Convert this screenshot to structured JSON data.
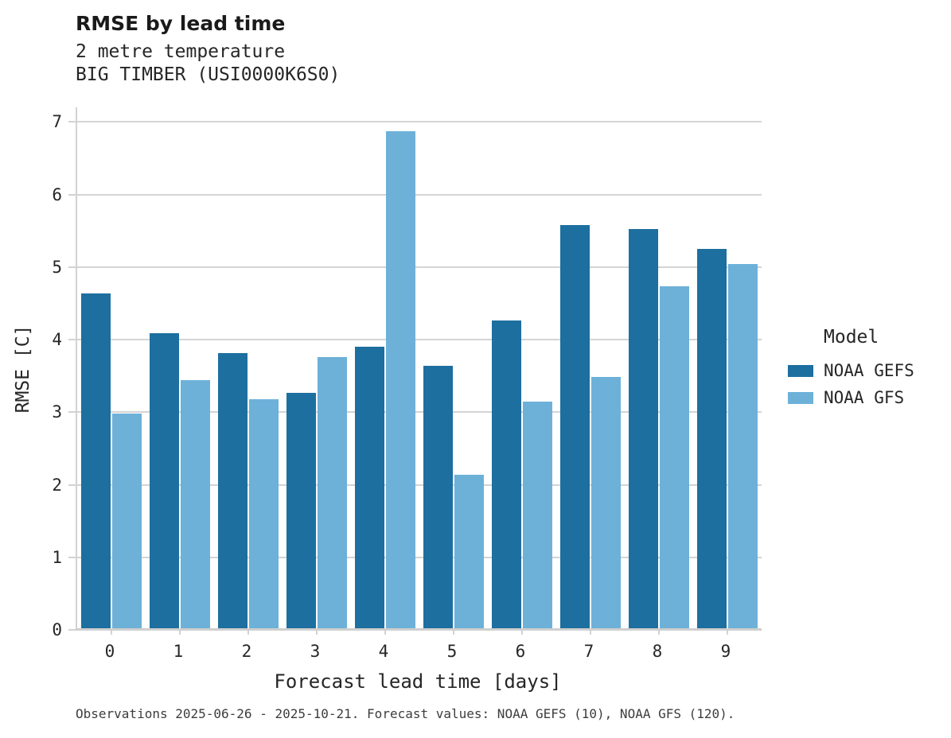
{
  "header": {
    "title": "RMSE by lead time",
    "subtitle_variable": "2 metre temperature",
    "subtitle_station": "BIG TIMBER (USI0000K6S0)"
  },
  "chart_data": {
    "type": "bar",
    "title": "RMSE by lead time",
    "subtitle": "2 metre temperature — BIG TIMBER (USI0000K6S0)",
    "categories": [
      "0",
      "1",
      "2",
      "3",
      "4",
      "5",
      "6",
      "7",
      "8",
      "9"
    ],
    "series": [
      {
        "name": "NOAA GEFS",
        "color": "#1d6f9f",
        "values": [
          4.64,
          4.09,
          3.81,
          3.27,
          3.9,
          3.64,
          4.26,
          5.58,
          5.52,
          5.25
        ]
      },
      {
        "name": "NOAA GFS",
        "color": "#6db1d9",
        "values": [
          2.98,
          3.44,
          3.18,
          3.76,
          6.87,
          2.14,
          3.15,
          3.48,
          4.73,
          5.04
        ]
      }
    ],
    "xlabel": "Forecast lead time [days]",
    "ylabel": "RMSE [C]",
    "ylim": [
      0,
      7.2
    ],
    "yticks": [
      0,
      1,
      2,
      3,
      4,
      5,
      6,
      7
    ],
    "grid": true,
    "grid_color": "#d4d4d4",
    "axis_color": "#cfcfcf",
    "legend_position": "right",
    "legend_title": "Model"
  },
  "legend": {
    "title": "Model"
  },
  "footer": {
    "caption": "Observations 2025-06-26 - 2025-10-21. Forecast values: NOAA GEFS (10), NOAA GFS (120)."
  }
}
